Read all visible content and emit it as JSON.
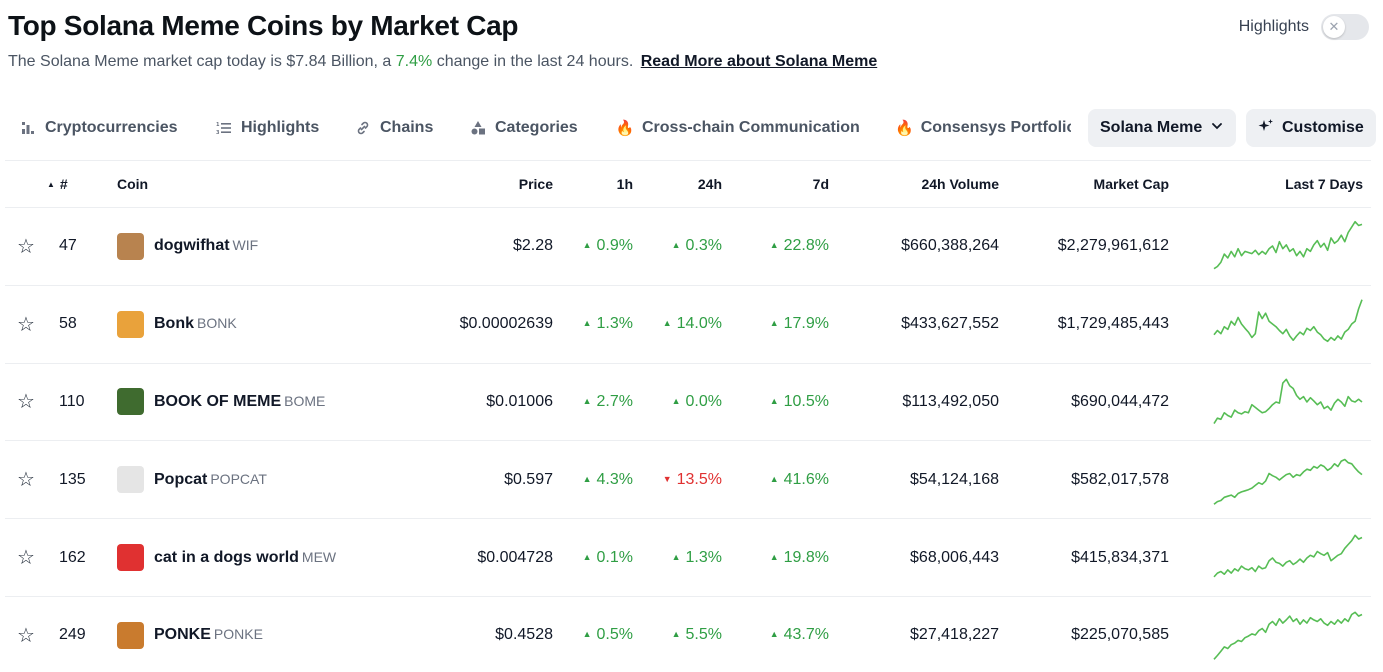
{
  "page": {
    "title": "Top Solana Meme Coins by Market Cap",
    "subtitle_prefix": "The Solana Meme market cap today is $7.84 Billion, a",
    "subtitle_pct": "7.4%",
    "subtitle_suffix": "change in the last 24 hours.",
    "read_more": "Read More about Solana Meme",
    "highlights_label": "Highlights",
    "highlights_toggle_icon": "✕"
  },
  "colors": {
    "up": "#2f9e44",
    "down": "#e03131",
    "spark": "#57bd55"
  },
  "tabs": [
    {
      "label": "Cryptocurrencies",
      "icon": "bar-chart-icon"
    },
    {
      "label": "Highlights",
      "icon": "list-icon"
    },
    {
      "label": "Chains",
      "icon": "link-icon"
    },
    {
      "label": "Categories",
      "icon": "shapes-icon"
    },
    {
      "label": "Cross-chain Communication",
      "icon": "fire-icon"
    },
    {
      "label": "Consensys Portfolio",
      "icon": "fire-icon"
    }
  ],
  "category_dropdown": {
    "label": "Solana Meme",
    "icon": "chevron-down-icon"
  },
  "customise_button": {
    "label": "Customise",
    "icon": "sparkle-icon"
  },
  "columns": {
    "rank": "#",
    "coin": "Coin",
    "price": "Price",
    "h1": "1h",
    "h24": "24h",
    "d7": "7d",
    "volume": "24h Volume",
    "mcap": "Market Cap",
    "spark": "Last 7 Days"
  },
  "rows": [
    {
      "rank": "47",
      "name": "dogwifhat",
      "symbol": "WIF",
      "price": "$2.28",
      "h1": "0.9%",
      "h1_dir": "up",
      "h24": "0.3%",
      "h24_dir": "up",
      "d7": "22.8%",
      "d7_dir": "up",
      "volume": "$660,388,264",
      "mcap": "$2,279,961,612",
      "avatar_color": "#b8834f",
      "spark": [
        0.08,
        0.12,
        0.2,
        0.35,
        0.28,
        0.4,
        0.3,
        0.45,
        0.32,
        0.4,
        0.38,
        0.36,
        0.42,
        0.34,
        0.4,
        0.35,
        0.45,
        0.5,
        0.38,
        0.58,
        0.45,
        0.52,
        0.4,
        0.45,
        0.32,
        0.4,
        0.3,
        0.45,
        0.4,
        0.52,
        0.6,
        0.48,
        0.55,
        0.42,
        0.65,
        0.55,
        0.6,
        0.7,
        0.58,
        0.75,
        0.85,
        0.95,
        0.88,
        0.9
      ]
    },
    {
      "rank": "58",
      "name": "Bonk",
      "symbol": "BONK",
      "price": "$0.00002639",
      "h1": "1.3%",
      "h1_dir": "up",
      "h24": "14.0%",
      "h24_dir": "up",
      "d7": "17.9%",
      "d7_dir": "up",
      "volume": "$433,627,552",
      "mcap": "$1,729,485,443",
      "avatar_color": "#e9a23b",
      "spark": [
        0.3,
        0.38,
        0.32,
        0.45,
        0.4,
        0.55,
        0.48,
        0.62,
        0.5,
        0.42,
        0.35,
        0.25,
        0.32,
        0.72,
        0.6,
        0.7,
        0.55,
        0.5,
        0.45,
        0.38,
        0.32,
        0.4,
        0.28,
        0.2,
        0.28,
        0.35,
        0.3,
        0.42,
        0.38,
        0.45,
        0.35,
        0.3,
        0.22,
        0.18,
        0.25,
        0.2,
        0.28,
        0.22,
        0.35,
        0.4,
        0.5,
        0.55,
        0.78,
        0.95
      ]
    },
    {
      "rank": "110",
      "name": "BOOK OF MEME",
      "symbol": "BOME",
      "price": "$0.01006",
      "h1": "2.7%",
      "h1_dir": "up",
      "h24": "0.0%",
      "h24_dir": "up",
      "d7": "10.5%",
      "d7_dir": "up",
      "volume": "$113,492,050",
      "mcap": "$690,044,472",
      "avatar_color": "#3f6b2f",
      "spark": [
        0.1,
        0.2,
        0.18,
        0.3,
        0.25,
        0.22,
        0.35,
        0.3,
        0.28,
        0.32,
        0.3,
        0.45,
        0.4,
        0.35,
        0.3,
        0.32,
        0.38,
        0.45,
        0.5,
        0.48,
        0.85,
        0.92,
        0.8,
        0.75,
        0.62,
        0.55,
        0.6,
        0.5,
        0.58,
        0.52,
        0.45,
        0.5,
        0.38,
        0.42,
        0.35,
        0.48,
        0.55,
        0.5,
        0.42,
        0.6,
        0.52,
        0.5,
        0.55,
        0.5
      ]
    },
    {
      "rank": "135",
      "name": "Popcat",
      "symbol": "POPCAT",
      "price": "$0.597",
      "h1": "4.3%",
      "h1_dir": "up",
      "h24": "13.5%",
      "h24_dir": "down",
      "d7": "41.6%",
      "d7_dir": "up",
      "volume": "$54,124,168",
      "mcap": "$582,017,578",
      "avatar_color": "#e5e5e5",
      "spark": [
        0.05,
        0.1,
        0.12,
        0.18,
        0.2,
        0.22,
        0.18,
        0.25,
        0.28,
        0.3,
        0.32,
        0.35,
        0.4,
        0.45,
        0.42,
        0.48,
        0.62,
        0.58,
        0.55,
        0.5,
        0.55,
        0.6,
        0.62,
        0.55,
        0.6,
        0.58,
        0.65,
        0.7,
        0.68,
        0.75,
        0.72,
        0.78,
        0.75,
        0.68,
        0.72,
        0.8,
        0.75,
        0.85,
        0.88,
        0.82,
        0.8,
        0.72,
        0.65,
        0.6
      ]
    },
    {
      "rank": "162",
      "name": "cat in a dogs world",
      "symbol": "MEW",
      "price": "$0.004728",
      "h1": "0.1%",
      "h1_dir": "up",
      "h24": "1.3%",
      "h24_dir": "up",
      "d7": "19.8%",
      "d7_dir": "up",
      "volume": "$68,006,443",
      "mcap": "$415,834,371",
      "avatar_color": "#e03131",
      "spark": [
        0.15,
        0.22,
        0.25,
        0.2,
        0.28,
        0.22,
        0.3,
        0.26,
        0.35,
        0.3,
        0.28,
        0.32,
        0.25,
        0.35,
        0.3,
        0.32,
        0.45,
        0.5,
        0.42,
        0.4,
        0.35,
        0.42,
        0.45,
        0.38,
        0.42,
        0.48,
        0.42,
        0.5,
        0.55,
        0.52,
        0.62,
        0.58,
        0.55,
        0.6,
        0.45,
        0.5,
        0.55,
        0.58,
        0.68,
        0.75,
        0.82,
        0.92,
        0.85,
        0.88
      ]
    },
    {
      "rank": "249",
      "name": "PONKE",
      "symbol": "PONKE",
      "price": "$0.4528",
      "h1": "0.5%",
      "h1_dir": "up",
      "h24": "5.5%",
      "h24_dir": "up",
      "d7": "43.7%",
      "d7_dir": "up",
      "volume": "$27,418,227",
      "mcap": "$225,070,585",
      "avatar_color": "#c97b2e",
      "spark": [
        0.05,
        0.12,
        0.2,
        0.28,
        0.25,
        0.32,
        0.35,
        0.4,
        0.38,
        0.45,
        0.48,
        0.52,
        0.5,
        0.58,
        0.62,
        0.55,
        0.7,
        0.75,
        0.68,
        0.8,
        0.72,
        0.78,
        0.85,
        0.75,
        0.8,
        0.7,
        0.78,
        0.72,
        0.82,
        0.78,
        0.75,
        0.8,
        0.72,
        0.68,
        0.75,
        0.7,
        0.78,
        0.72,
        0.8,
        0.75,
        0.88,
        0.92,
        0.85,
        0.88
      ]
    }
  ]
}
